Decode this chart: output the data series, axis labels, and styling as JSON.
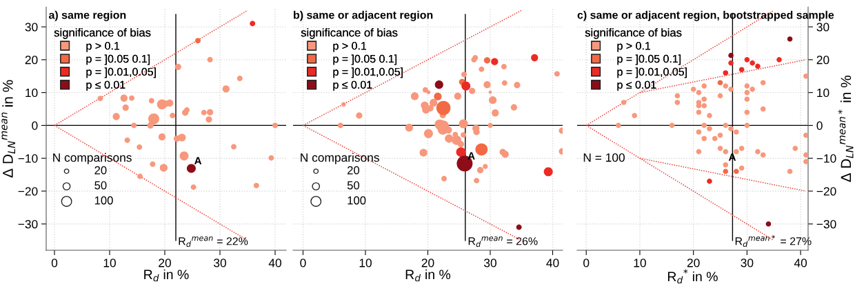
{
  "chart_data": [
    {
      "type": "bubble",
      "title": "a) same region",
      "xlabel": "R$_{d}$ in %",
      "ylabel": "Δ D$_{LN}$$^{mean}$ in %",
      "legend_title": "significance of bias",
      "legend": "top left",
      "grid": true,
      "xlim": [
        -1.5,
        42
      ],
      "ylim": [
        -38,
        36
      ],
      "xticks": [
        0,
        10,
        20,
        30,
        40
      ],
      "yticks": [
        -30,
        -20,
        -10,
        0,
        10,
        20,
        30
      ],
      "size_legend": [
        20,
        50,
        100
      ],
      "series": [
        {
          "name": "p > 0.1",
          "color": "#f7987c",
          "x": [
            28.2,
            22.4,
            33.6,
            31.1,
            8.3,
            12.6,
            14.0,
            17.6,
            12.9,
            19.5,
            20.9,
            20.2,
            11.2,
            18.0,
            21.4,
            23.7,
            24.0,
            27.1,
            28.2,
            28.0,
            14.4,
            17.4,
            40,
            19.5,
            22.2,
            23.1,
            13.2,
            15.4,
            32.5,
            23.5,
            39.3,
            17.8,
            19.8,
            15.5,
            25.2,
            36.6
          ],
          "values": [
            20.0,
            17.8,
            14.3,
            11.1,
            8.2,
            8.3,
            8.3,
            7.5,
            5.4,
            6.4,
            6.8,
            6.6,
            2.7,
            2.0,
            3.0,
            3.9,
            4.7,
            3.9,
            4.0,
            1.8,
            0,
            0,
            0,
            -3.5,
            -4.0,
            -3.7,
            -4.5,
            -6.6,
            -6.5,
            -9.3,
            -9.9,
            -11.8,
            -12.9,
            -15.5,
            -18.8,
            -18.3
          ],
          "sizes": [
            30,
            40,
            30,
            50,
            30,
            50,
            30,
            30,
            40,
            100,
            50,
            40,
            50,
            120,
            30,
            40,
            30,
            30,
            40,
            40,
            30,
            40,
            30,
            50,
            40,
            60,
            30,
            30,
            30,
            80,
            30,
            30,
            60,
            30,
            30,
            30
          ]
        },
        {
          "name": "p = ]0.05 0.1]",
          "color": "#f26a45",
          "x": [
            26.0
          ],
          "values": [
            25.8
          ],
          "sizes": [
            30
          ]
        },
        {
          "name": "p = ]0.01,0.05]",
          "color": "#ec2a24",
          "x": [
            35.9
          ],
          "values": [
            31.0
          ],
          "sizes": [
            30
          ]
        },
        {
          "name": "p ≤ 0.01",
          "color": "#8e0c18",
          "x": [
            24.8
          ],
          "values": [
            -13.1
          ],
          "sizes": [
            80
          ]
        },
        {
          "type": "line",
          "color": "#e8453c",
          "line_style": "dotted",
          "x": [
            0,
            35
          ],
          "values": [
            0,
            35
          ]
        },
        {
          "type": "line",
          "color": "#e8453c",
          "line_style": "dotted",
          "x": [
            0,
            35
          ],
          "values": [
            0,
            -35
          ]
        }
      ],
      "ref_lines": [
        {
          "axis": "x",
          "value": 22,
          "label": "R$_{d}$$^{mean}$ = 22%",
          "color": "#000000"
        },
        {
          "axis": "y",
          "value": 0,
          "color": "#000000"
        }
      ],
      "annotations": [
        "N comparisons",
        {
          "text": "A",
          "x": 24.8,
          "y": -13.1
        }
      ]
    },
    {
      "type": "bubble",
      "title": "b) same or adjacent region",
      "xlabel": "R$_{d}$ in %",
      "legend_title": "significance of bias",
      "legend": "top left",
      "grid": true,
      "tick_labels": "x",
      "xlim": [
        -1.6,
        41.6
      ],
      "ylim": [
        -38,
        36
      ],
      "xticks": [
        0,
        10,
        20,
        30,
        40
      ],
      "yticks": [
        -30,
        -20,
        -10,
        0,
        10,
        20,
        30
      ],
      "size_legend": [
        20,
        50,
        100
      ],
      "series": [
        {
          "name": "p > 0.1",
          "color": "#f7987c",
          "x": [
            27.4,
            27.6,
            32.2,
            28.6,
            40.7,
            25.8,
            29.5,
            32.3,
            34.3,
            19.6,
            20.1,
            27.1,
            30.0,
            17.9,
            24.8,
            30.4,
            19.5,
            19.7,
            20.9,
            20.4,
            33.8,
            22.4,
            30.8,
            9.0,
            6.5,
            6.0,
            17.0,
            21.9,
            22.4,
            25.7,
            30.0,
            27.7,
            41.5,
            20.1,
            22.4,
            23.3,
            27.8,
            24.4,
            25.7,
            23.4,
            24.6,
            25.3,
            41.5,
            19.3,
            32.0,
            32.4,
            28.4,
            29.2,
            22.6,
            27.8
          ],
          "values": [
            20.0,
            20.6,
            17.9,
            17.1,
            15.7,
            15.5,
            12.4,
            12.9,
            12.3,
            10.8,
            10.1,
            10.5,
            10.1,
            8.9,
            8.9,
            7.7,
            6.1,
            4.8,
            6.9,
            5.2,
            5.5,
            3.1,
            3.8,
            3.0,
            6.4,
            0,
            -0.7,
            0.3,
            -0.3,
            0.5,
            0,
            -0.9,
            -1.6,
            -2.5,
            -1.3,
            -1.4,
            -2.0,
            -2.8,
            -2.9,
            -4.0,
            -4.5,
            -5.7,
            -7.9,
            -8.3,
            -8.1,
            -8.8,
            -13.6,
            -12.5,
            -16.2,
            -16.8
          ],
          "sizes": [
            30,
            30,
            30,
            30,
            30,
            30,
            50,
            30,
            40,
            30,
            15,
            40,
            10,
            60,
            50,
            60,
            60,
            60,
            60,
            40,
            40,
            40,
            50,
            40,
            20,
            30,
            60,
            100,
            150,
            80,
            25,
            50,
            40,
            80,
            100,
            50,
            40,
            30,
            30,
            70,
            90,
            40,
            40,
            60,
            40,
            50,
            40,
            25,
            30,
            30
          ]
        },
        {
          "name": "p = ]0.05 0.1]",
          "color": "#f26a45",
          "x": [
            29.5,
            25.5,
            21.6,
            22.5,
            28.6
          ],
          "values": [
            19.8,
            13.2,
            8.8,
            5.3,
            -7.3
          ],
          "sizes": [
            40,
            40,
            60,
            200,
            150
          ]
        },
        {
          "name": "p = ]0.01,0.05]",
          "color": "#ec2a24",
          "x": [
            37.1,
            30.7,
            26.1,
            25.3,
            39.3
          ],
          "values": [
            20.6,
            19.4,
            12.0,
            -8.1,
            -14.1
          ],
          "sizes": [
            50,
            50,
            80,
            90,
            80
          ]
        },
        {
          "name": "p ≤ 0.01",
          "color": "#8e0c18",
          "x": [
            21.8,
            25.9,
            34.6
          ],
          "values": [
            12.4,
            -11.6,
            -31.0
          ],
          "sizes": [
            70,
            250,
            30
          ]
        },
        {
          "type": "line",
          "color": "#e8453c",
          "line_style": "dotted",
          "x": [
            0,
            35
          ],
          "values": [
            0,
            35
          ]
        },
        {
          "type": "line",
          "color": "#e8453c",
          "line_style": "dotted",
          "x": [
            0,
            35
          ],
          "values": [
            0,
            -35
          ]
        }
      ],
      "ref_lines": [
        {
          "axis": "x",
          "value": 26,
          "label": "R$_{d}$$^{mean}$ = 26%",
          "color": "#000000"
        },
        {
          "axis": "y",
          "value": 0,
          "color": "#000000"
        }
      ],
      "annotations": [
        "N comparisons",
        {
          "text": "A",
          "x": 25.9,
          "y": -11.6
        }
      ]
    },
    {
      "type": "scatter",
      "title": "c) same or adjacent region, bootstrapped sample",
      "xlabel": "R$_{d}$$^{*}$ in %",
      "ylabel": "Δ D$_{LN}$$^{mean*}$ in %",
      "legend_title": "significance of bias",
      "legend": "top left",
      "grid": true,
      "xlim": [
        -1.7,
        41.4
      ],
      "ylim": [
        -38,
        36
      ],
      "xticks": [
        0,
        10,
        20,
        30,
        40
      ],
      "yticks": [
        -30,
        -20,
        -10,
        0,
        10,
        20,
        30
      ],
      "series": [
        {
          "name": "p > 0.1",
          "color": "#f7987c",
          "x": [
            41,
            33,
            22,
            26,
            30,
            20,
            31,
            21,
            27,
            30,
            17,
            25,
            30,
            22,
            17,
            21,
            7,
            21,
            22,
            33,
            21,
            30,
            9,
            23,
            6,
            16,
            22,
            26,
            30,
            23,
            27,
            21,
            28,
            25,
            22,
            24,
            41,
            25,
            29,
            39,
            21,
            26,
            28,
            32,
            33,
            41,
            41,
            26,
            29,
            38
          ],
          "values": [
            15,
            13,
            12,
            12,
            12,
            11,
            11,
            10,
            11,
            10,
            9,
            9,
            8,
            8,
            7,
            7,
            7,
            6,
            6,
            5,
            4,
            4,
            3,
            3,
            0,
            0,
            0,
            0,
            0,
            -1,
            -1,
            -2,
            -2,
            -3,
            -4,
            -4,
            -3,
            -7,
            -7,
            -7,
            -8,
            -8,
            -8,
            -8,
            -9,
            -9,
            -11,
            -12,
            -13,
            -14
          ]
        },
        {
          "name": "p = ]0.05 0.1]",
          "color": "#f26a45",
          "x": [
            25,
            26,
            28
          ],
          "values": [
            13,
            -14,
            -14
          ]
        },
        {
          "name": "p = ]0.01,0.05]",
          "color": "#ec2a24",
          "x": [
            30,
            36,
            27,
            31,
            32,
            29,
            26,
            23
          ],
          "values": [
            20,
            20,
            19,
            19,
            18,
            17,
            16,
            -17
          ]
        },
        {
          "name": "p ≤ 0.01",
          "color": "#8e0c18",
          "x": [
            38,
            27,
            34
          ],
          "values": [
            26.3,
            21.3,
            -30
          ]
        },
        {
          "type": "line",
          "color": "#e8453c",
          "line_style": "dotted",
          "x": [
            0,
            35
          ],
          "values": [
            0,
            35
          ]
        },
        {
          "type": "line",
          "color": "#e8453c",
          "line_style": "dotted",
          "x": [
            0,
            35
          ],
          "values": [
            0,
            -35
          ]
        },
        {
          "type": "line",
          "color": "#e8453c",
          "line_style": "dotted",
          "x": [
            10,
            41
          ],
          "values": [
            10,
            20
          ]
        },
        {
          "type": "line",
          "color": "#e8453c",
          "line_style": "dotted",
          "x": [
            10,
            41
          ],
          "values": [
            -10,
            -20
          ]
        }
      ],
      "ref_lines": [
        {
          "axis": "x",
          "value": 27.3,
          "label": "R$_{d}$$^{mean*}$ = 27%",
          "color": "#000000"
        },
        {
          "axis": "y",
          "value": 0,
          "color": "#000000"
        }
      ],
      "annotations": [
        "N = 100",
        {
          "text": "A",
          "x": 26,
          "y": -12
        }
      ]
    }
  ]
}
